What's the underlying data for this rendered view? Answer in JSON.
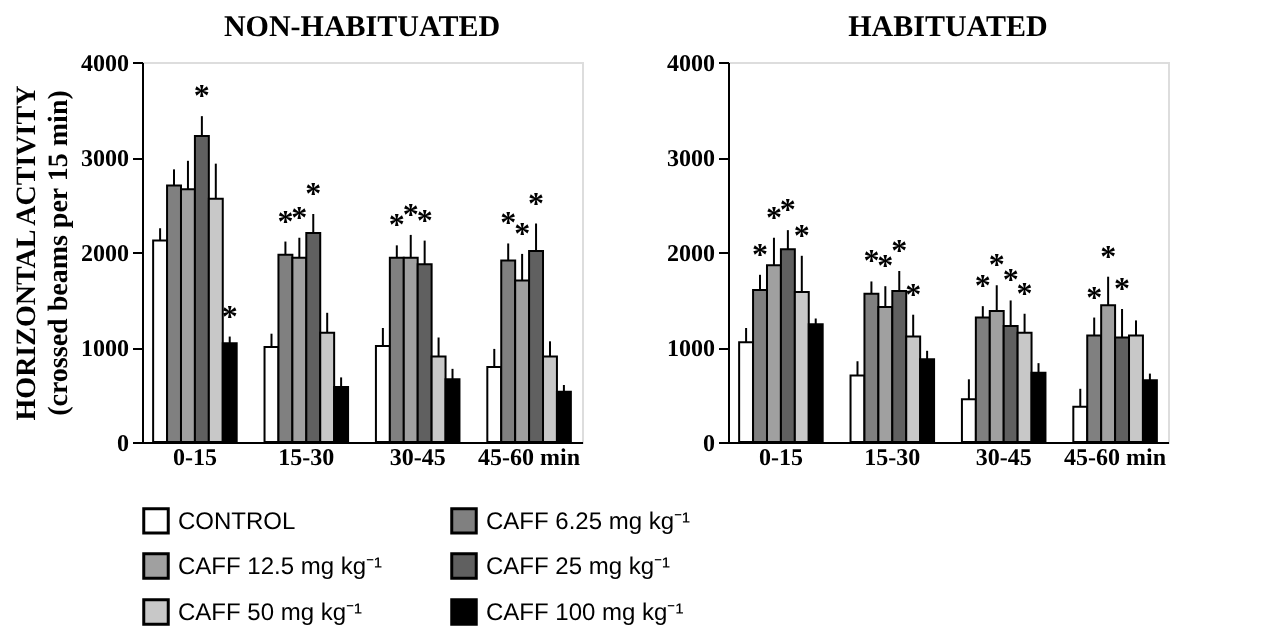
{
  "chart_data": [
    {
      "type": "bar",
      "title": "NON-HABITUATED",
      "ylabel": "HORIZONTAL ACTIVITY\n(crossed beams per 15 min)",
      "categories": [
        "0-15",
        "15-30",
        "30-45",
        "45-60 min"
      ],
      "ylim": [
        0,
        4000
      ],
      "yticks": [
        0,
        1000,
        2000,
        3000,
        4000
      ],
      "grid": false,
      "legend": "bottom",
      "series": [
        {
          "name": "CONTROL",
          "color": "#ffffff",
          "values": [
            2120,
            1000,
            1010,
            790
          ],
          "errors": [
            [
              2120,
              2250
            ],
            [
              1000,
              1140
            ],
            [
              1010,
              1200
            ],
            [
              790,
              980
            ]
          ],
          "value_labels": [
            null,
            null,
            null,
            null
          ]
        },
        {
          "name": "CAFF 6.25 mg kg⁻¹",
          "color": "#808080",
          "values": [
            2700,
            1970,
            1940,
            1910
          ],
          "errors": [
            [
              2700,
              2870
            ],
            [
              1970,
              2110
            ],
            [
              1940,
              2070
            ],
            [
              1910,
              2090
            ]
          ],
          "value_labels": [
            null,
            "*",
            "*",
            "*"
          ]
        },
        {
          "name": "CAFF 12.5 mg kg⁻¹",
          "color": "#a0a0a0",
          "values": [
            2660,
            1940,
            1940,
            1700
          ],
          "errors": [
            [
              2660,
              2960
            ],
            [
              1940,
              2150
            ],
            [
              1940,
              2180
            ],
            [
              1700,
              1980
            ]
          ],
          "value_labels": [
            null,
            "*",
            "*",
            "*"
          ]
        },
        {
          "name": "CAFF 25 mg kg⁻¹",
          "color": "#606060",
          "values": [
            3220,
            2200,
            1870,
            2010
          ],
          "errors": [
            [
              3220,
              3430
            ],
            [
              2200,
              2400
            ],
            [
              1870,
              2120
            ],
            [
              2010,
              2300
            ]
          ],
          "value_labels": [
            "*",
            "*",
            "*",
            "*"
          ]
        },
        {
          "name": "CAFF 50 mg kg⁻¹",
          "color": "#c8c8c8",
          "values": [
            2560,
            1150,
            900,
            900
          ],
          "errors": [
            [
              2560,
              2930
            ],
            [
              1150,
              1360
            ],
            [
              900,
              1100
            ],
            [
              900,
              1060
            ]
          ],
          "value_labels": [
            null,
            null,
            null,
            null
          ]
        },
        {
          "name": "CAFF 100 mg kg⁻¹",
          "color": "#000000",
          "values": [
            1040,
            580,
            660,
            530
          ],
          "errors": [
            [
              1040,
              1110
            ],
            [
              580,
              680
            ],
            [
              660,
              770
            ],
            [
              530,
              600
            ]
          ],
          "value_labels": [
            "*",
            null,
            null,
            null
          ]
        }
      ]
    },
    {
      "type": "bar",
      "title": "HABITUATED",
      "categories": [
        "0-15",
        "15-30",
        "30-45",
        "45-60 min"
      ],
      "ylim": [
        0,
        4000
      ],
      "yticks": [
        0,
        1000,
        2000,
        3000,
        4000
      ],
      "grid": false,
      "legend": "bottom",
      "series": [
        {
          "name": "CONTROL",
          "color": "#ffffff",
          "values": [
            1050,
            700,
            450,
            370
          ],
          "errors": [
            [
              1050,
              1200
            ],
            [
              700,
              850
            ],
            [
              450,
              660
            ],
            [
              370,
              560
            ]
          ],
          "value_labels": [
            null,
            null,
            null,
            null
          ]
        },
        {
          "name": "CAFF 6.25 mg kg⁻¹",
          "color": "#808080",
          "values": [
            1600,
            1560,
            1310,
            1120
          ],
          "errors": [
            [
              1600,
              1760
            ],
            [
              1560,
              1690
            ],
            [
              1310,
              1430
            ],
            [
              1120,
              1310
            ]
          ],
          "value_labels": [
            "*",
            "*",
            "*",
            "*"
          ]
        },
        {
          "name": "CAFF 12.5 mg kg⁻¹",
          "color": "#a0a0a0",
          "values": [
            1860,
            1420,
            1380,
            1440
          ],
          "errors": [
            [
              1860,
              2150
            ],
            [
              1420,
              1640
            ],
            [
              1380,
              1650
            ],
            [
              1440,
              1740
            ]
          ],
          "value_labels": [
            "*",
            "*",
            "*",
            "*"
          ]
        },
        {
          "name": "CAFF 25 mg kg⁻¹",
          "color": "#606060",
          "values": [
            2030,
            1590,
            1220,
            1100
          ],
          "errors": [
            [
              2030,
              2230
            ],
            [
              1590,
              1800
            ],
            [
              1220,
              1490
            ],
            [
              1100,
              1400
            ]
          ],
          "value_labels": [
            "*",
            "*",
            "*",
            "*"
          ]
        },
        {
          "name": "CAFF 50 mg kg⁻¹",
          "color": "#c8c8c8",
          "values": [
            1580,
            1110,
            1150,
            1120
          ],
          "errors": [
            [
              1580,
              1960
            ],
            [
              1110,
              1340
            ],
            [
              1150,
              1350
            ],
            [
              1120,
              1280
            ]
          ],
          "value_labels": [
            "*",
            "*",
            "*",
            null
          ]
        },
        {
          "name": "CAFF 100 mg kg⁻¹",
          "color": "#000000",
          "values": [
            1240,
            870,
            730,
            650
          ],
          "errors": [
            [
              1240,
              1300
            ],
            [
              870,
              960
            ],
            [
              730,
              830
            ],
            [
              650,
              720
            ]
          ],
          "value_labels": [
            null,
            null,
            null,
            null
          ]
        }
      ]
    }
  ]
}
